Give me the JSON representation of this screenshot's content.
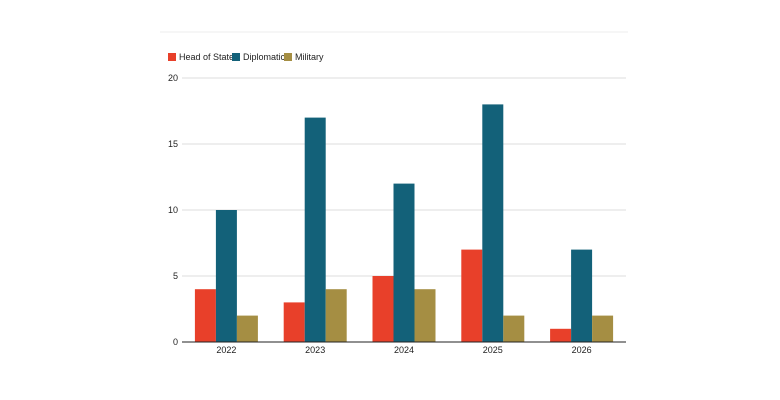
{
  "chart_data": {
    "type": "bar",
    "categories": [
      "2022",
      "2023",
      "2024",
      "2025",
      "2026"
    ],
    "series": [
      {
        "name": "Head of State",
        "color": "#e8402a",
        "values": [
          4,
          3,
          5,
          7,
          1
        ]
      },
      {
        "name": "Diplomatic",
        "color": "#136179",
        "values": [
          10,
          17,
          12,
          18,
          7
        ]
      },
      {
        "name": "Military",
        "color": "#a58e43",
        "values": [
          2,
          4,
          4,
          2,
          2
        ]
      }
    ],
    "ylim": [
      0,
      20
    ],
    "yticks": [
      0,
      5,
      10,
      15,
      20
    ],
    "grid": true,
    "legend_position": "top-left"
  }
}
